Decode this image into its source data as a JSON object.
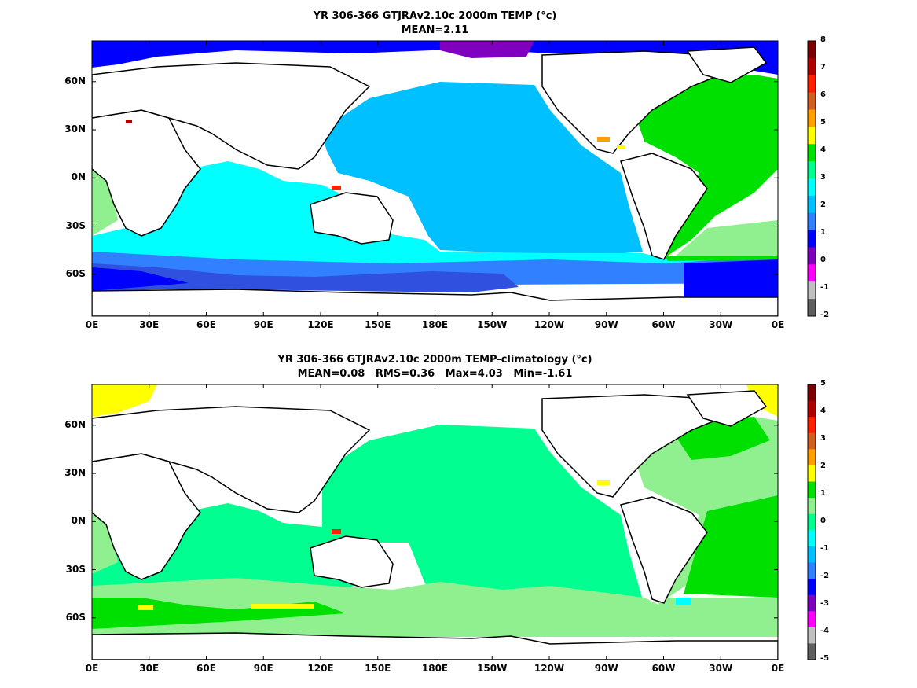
{
  "panels": [
    {
      "title": "YR 306-366 GTJRAv2.10c 2000m TEMP (°c)",
      "subtitle": "MEAN=2.11",
      "colorbar": {
        "ticks": [
          "8",
          "7",
          "6",
          "5",
          "4",
          "3",
          "2",
          "1",
          "0",
          "-1",
          "-2"
        ],
        "colors": [
          "#7a0000",
          "#b00000",
          "#ff2000",
          "#d06020",
          "#ffa000",
          "#ffff00",
          "#00e000",
          "#00ff90",
          "#00ffff",
          "#00c0ff",
          "#3080ff",
          "#0000ff",
          "#8000c0",
          "#ff00ff",
          "#c0c0c0",
          "#606060"
        ]
      }
    },
    {
      "title": "YR 306-366 GTJRAv2.10c 2000m TEMP-climatology (°c)",
      "subtitle": "MEAN=0.08   RMS=0.36   Max=4.03   Min=-1.61",
      "colorbar": {
        "ticks": [
          "5",
          "4",
          "3",
          "2",
          "1",
          "0",
          "-1",
          "-2",
          "-3",
          "-4",
          "-5"
        ],
        "colors": [
          "#7a0000",
          "#b00000",
          "#ff2000",
          "#d06020",
          "#ffa000",
          "#ffff00",
          "#00e000",
          "#90f090",
          "#00ff90",
          "#00ffff",
          "#00c0ff",
          "#3080ff",
          "#0000ff",
          "#8000c0",
          "#ff00ff",
          "#c0c0c0",
          "#606060"
        ]
      }
    }
  ],
  "axes": {
    "y_ticks": [
      "60N",
      "30N",
      "0N",
      "30S",
      "60S"
    ],
    "x_ticks": [
      "0E",
      "30E",
      "60E",
      "90E",
      "120E",
      "150E",
      "180E",
      "150W",
      "120W",
      "90W",
      "60W",
      "30W",
      "0E"
    ]
  }
}
